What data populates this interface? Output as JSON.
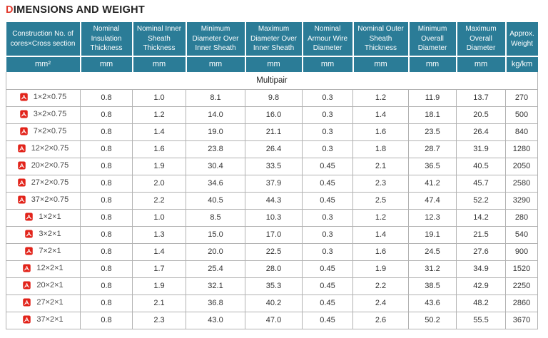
{
  "title": {
    "accent": "D",
    "rest": "IMENSIONS AND WEIGHT"
  },
  "colors": {
    "header_bg": "#2b7c97",
    "header_text": "#ffffff",
    "accent_red": "#e23b2e",
    "pdf_icon_red": "#e2231a",
    "row_border": "#b2b2b2",
    "body_text": "#333333"
  },
  "table": {
    "columns": [
      {
        "label": "Construction No. of cores×Cross section",
        "unit": "mm²"
      },
      {
        "label": "Nominal Insulation Thickness",
        "unit": "mm"
      },
      {
        "label": "Nominal Inner Sheath Thickness",
        "unit": "mm"
      },
      {
        "label": "Minimum Diameter Over Inner Sheath",
        "unit": "mm"
      },
      {
        "label": "Maximum Diameter Over Inner Sheath",
        "unit": "mm"
      },
      {
        "label": "Nominal Armour Wire Diameter",
        "unit": "mm"
      },
      {
        "label": "Nominal Outer Sheath Thickness",
        "unit": "mm"
      },
      {
        "label": "Minimum Overall Diameter",
        "unit": "mm"
      },
      {
        "label": "Maximum Overall Diameter",
        "unit": "mm"
      },
      {
        "label": "Approx. Weight",
        "unit": "kg/km"
      }
    ],
    "section": "Multipair",
    "pdf_icon_name": "pdf-file-icon",
    "rows": [
      {
        "construction": "1×2×0.75",
        "values": [
          "0.8",
          "1.0",
          "8.1",
          "9.8",
          "0.3",
          "1.2",
          "11.9",
          "13.7",
          "270"
        ]
      },
      {
        "construction": "3×2×0.75",
        "values": [
          "0.8",
          "1.2",
          "14.0",
          "16.0",
          "0.3",
          "1.4",
          "18.1",
          "20.5",
          "500"
        ]
      },
      {
        "construction": "7×2×0.75",
        "values": [
          "0.8",
          "1.4",
          "19.0",
          "21.1",
          "0.3",
          "1.6",
          "23.5",
          "26.4",
          "840"
        ]
      },
      {
        "construction": "12×2×0.75",
        "values": [
          "0.8",
          "1.6",
          "23.8",
          "26.4",
          "0.3",
          "1.8",
          "28.7",
          "31.9",
          "1280"
        ]
      },
      {
        "construction": "20×2×0.75",
        "values": [
          "0.8",
          "1.9",
          "30.4",
          "33.5",
          "0.45",
          "2.1",
          "36.5",
          "40.5",
          "2050"
        ]
      },
      {
        "construction": "27×2×0.75",
        "values": [
          "0.8",
          "2.0",
          "34.6",
          "37.9",
          "0.45",
          "2.3",
          "41.2",
          "45.7",
          "2580"
        ]
      },
      {
        "construction": "37×2×0.75",
        "values": [
          "0.8",
          "2.2",
          "40.5",
          "44.3",
          "0.45",
          "2.5",
          "47.4",
          "52.2",
          "3290"
        ]
      },
      {
        "construction": "1×2×1",
        "values": [
          "0.8",
          "1.0",
          "8.5",
          "10.3",
          "0.3",
          "1.2",
          "12.3",
          "14.2",
          "280"
        ]
      },
      {
        "construction": "3×2×1",
        "values": [
          "0.8",
          "1.3",
          "15.0",
          "17.0",
          "0.3",
          "1.4",
          "19.1",
          "21.5",
          "540"
        ]
      },
      {
        "construction": "7×2×1",
        "values": [
          "0.8",
          "1.4",
          "20.0",
          "22.5",
          "0.3",
          "1.6",
          "24.5",
          "27.6",
          "900"
        ]
      },
      {
        "construction": "12×2×1",
        "values": [
          "0.8",
          "1.7",
          "25.4",
          "28.0",
          "0.45",
          "1.9",
          "31.2",
          "34.9",
          "1520"
        ]
      },
      {
        "construction": "20×2×1",
        "values": [
          "0.8",
          "1.9",
          "32.1",
          "35.3",
          "0.45",
          "2.2",
          "38.5",
          "42.9",
          "2250"
        ]
      },
      {
        "construction": "27×2×1",
        "values": [
          "0.8",
          "2.1",
          "36.8",
          "40.2",
          "0.45",
          "2.4",
          "43.6",
          "48.2",
          "2860"
        ]
      },
      {
        "construction": "37×2×1",
        "values": [
          "0.8",
          "2.3",
          "43.0",
          "47.0",
          "0.45",
          "2.6",
          "50.2",
          "55.5",
          "3670"
        ]
      }
    ]
  }
}
